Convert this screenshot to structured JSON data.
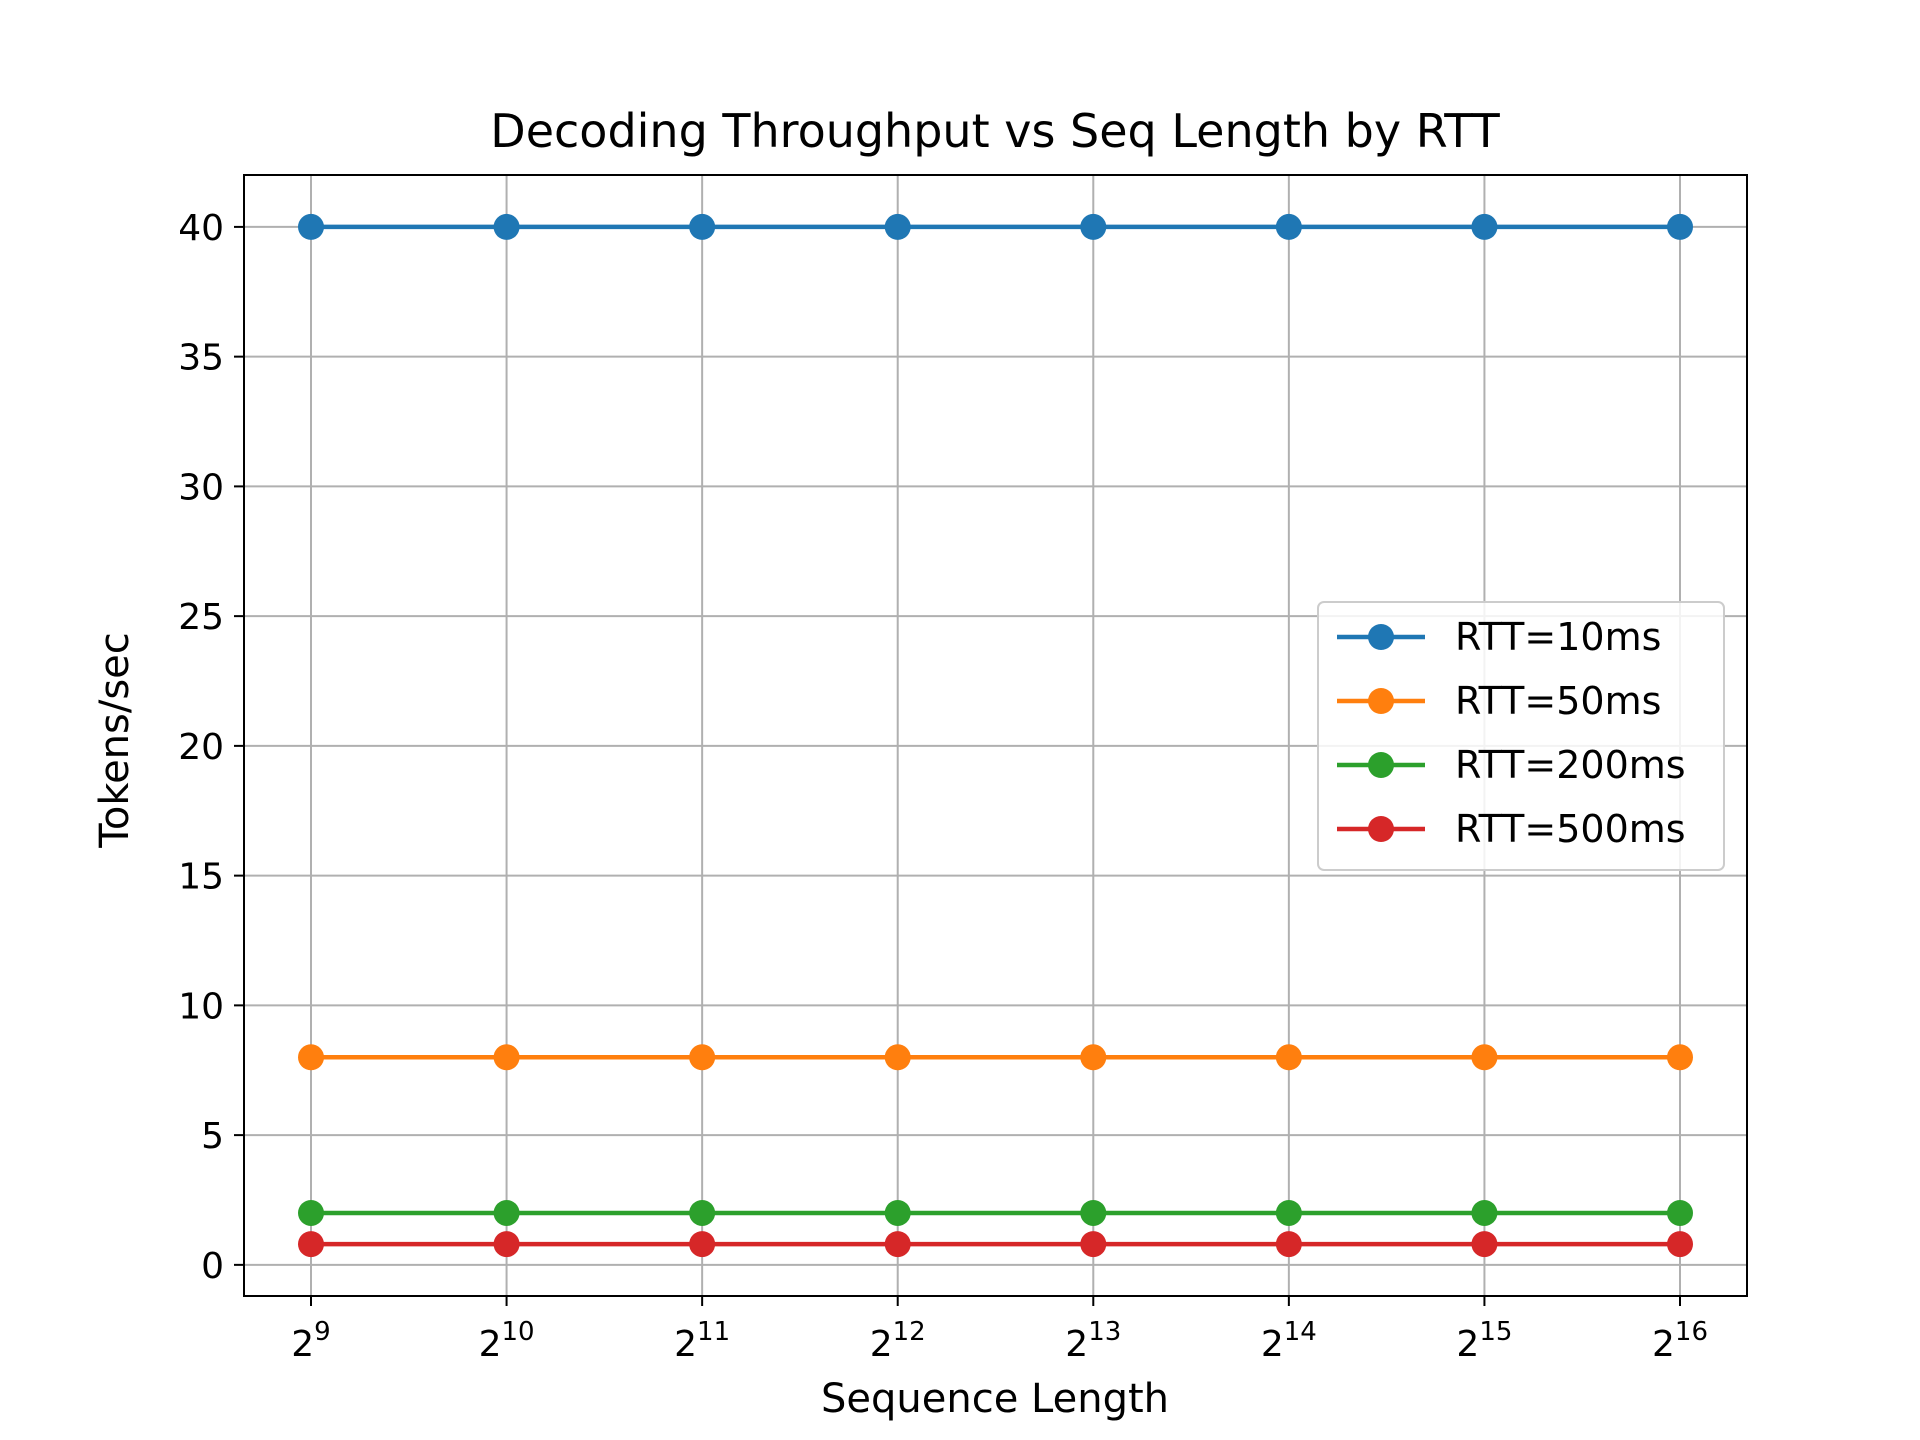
{
  "chart_data": {
    "type": "line",
    "title": "Decoding Throughput vs Seq Length by RTT",
    "xlabel": "Sequence Length",
    "ylabel": "Tokens/sec",
    "x_scale": "log2",
    "x": [
      512,
      1024,
      2048,
      4096,
      8192,
      16384,
      32768,
      65536
    ],
    "x_tick_labels": [
      {
        "base": "2",
        "exp": "9"
      },
      {
        "base": "2",
        "exp": "10"
      },
      {
        "base": "2",
        "exp": "11"
      },
      {
        "base": "2",
        "exp": "12"
      },
      {
        "base": "2",
        "exp": "13"
      },
      {
        "base": "2",
        "exp": "14"
      },
      {
        "base": "2",
        "exp": "15"
      },
      {
        "base": "2",
        "exp": "16"
      }
    ],
    "ylim": [
      -1.2,
      42
    ],
    "y_ticks": [
      0,
      5,
      10,
      15,
      20,
      25,
      30,
      35,
      40
    ],
    "grid": true,
    "legend_position": "center-right",
    "series": [
      {
        "name": "RTT=10ms",
        "color": "#1f77b4",
        "values": [
          40,
          40,
          40,
          40,
          40,
          40,
          40,
          40
        ]
      },
      {
        "name": "RTT=50ms",
        "color": "#ff7f0e",
        "values": [
          8,
          8,
          8,
          8,
          8,
          8,
          8,
          8
        ]
      },
      {
        "name": "RTT=200ms",
        "color": "#2ca02c",
        "values": [
          2,
          2,
          2,
          2,
          2,
          2,
          2,
          2
        ]
      },
      {
        "name": "RTT=500ms",
        "color": "#d62728",
        "values": [
          0.8,
          0.8,
          0.8,
          0.8,
          0.8,
          0.8,
          0.8,
          0.8
        ]
      }
    ]
  }
}
